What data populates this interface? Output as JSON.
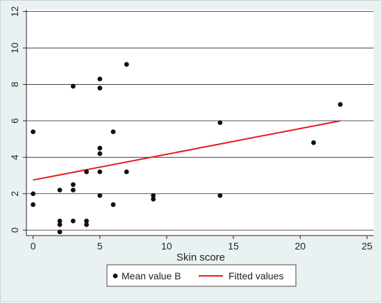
{
  "chart_data": {
    "type": "scatter",
    "xlabel": "Skin score",
    "ylabel": "",
    "xlim": [
      -0.5,
      25.5
    ],
    "ylim": [
      -0.3,
      12.1
    ],
    "x_ticks": [
      0,
      5,
      10,
      15,
      20,
      25
    ],
    "y_ticks": [
      0,
      2,
      4,
      6,
      8,
      10,
      12
    ],
    "x_tick_labels": [
      "0",
      "5",
      "10",
      "15",
      "20",
      "25"
    ],
    "y_tick_labels": [
      "0",
      "2",
      "4",
      "6",
      "8",
      "10",
      "12"
    ],
    "grid": "horizontal",
    "legend_position": "bottom",
    "series": [
      {
        "name": "Mean value B",
        "kind": "scatter",
        "color": "#111111",
        "points": [
          [
            0,
            5.4
          ],
          [
            0,
            2
          ],
          [
            0,
            1.4
          ],
          [
            2,
            2.2
          ],
          [
            2,
            0.5
          ],
          [
            2,
            0.3
          ],
          [
            2,
            -0.1
          ],
          [
            3,
            7.9
          ],
          [
            3,
            2.5
          ],
          [
            3,
            2.2
          ],
          [
            3,
            0.5
          ],
          [
            4,
            3.2
          ],
          [
            4,
            0.5
          ],
          [
            4,
            0.3
          ],
          [
            5,
            8.3
          ],
          [
            5,
            7.8
          ],
          [
            5,
            4.5
          ],
          [
            5,
            4.2
          ],
          [
            5,
            3.2
          ],
          [
            5,
            1.9
          ],
          [
            6,
            5.4
          ],
          [
            6,
            1.4
          ],
          [
            7,
            9.1
          ],
          [
            7,
            3.2
          ],
          [
            9,
            1.9
          ],
          [
            9,
            1.7
          ],
          [
            14,
            5.9
          ],
          [
            14,
            1.9
          ],
          [
            21,
            4.8
          ],
          [
            23,
            6.9
          ]
        ]
      },
      {
        "name": "Fitted values",
        "kind": "line",
        "color": "#e31a1c",
        "points": [
          [
            0,
            2.75
          ],
          [
            23,
            6.0
          ]
        ]
      }
    ]
  }
}
